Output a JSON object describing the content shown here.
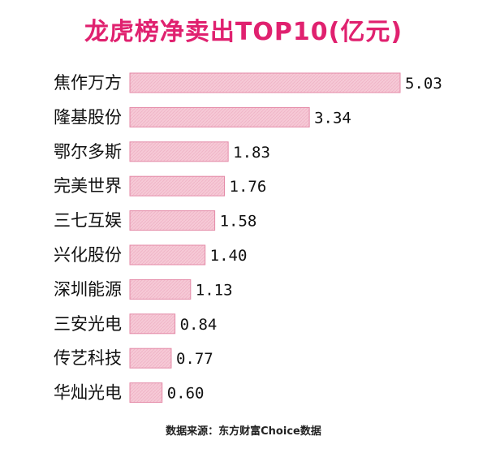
{
  "chart_data": {
    "type": "bar",
    "orientation": "horizontal",
    "title": "龙虎榜净卖出TOP10(亿元)",
    "source": "数据来源：东方财富Choice数据",
    "categories": [
      "焦作万方",
      "隆基股份",
      "鄂尔多斯",
      "完美世界",
      "三七互娱",
      "兴化股份",
      "深圳能源",
      "三安光电",
      "传艺科技",
      "华灿光电"
    ],
    "values": [
      5.03,
      3.34,
      1.83,
      1.76,
      1.58,
      1.4,
      1.13,
      0.84,
      0.77,
      0.6
    ],
    "value_labels": [
      "5.03",
      "3.34",
      "1.83",
      "1.76",
      "1.58",
      "1.40",
      "1.13",
      "0.84",
      "0.77",
      "0.60"
    ],
    "xlim": [
      0,
      5.03
    ],
    "grid": false,
    "legend": "none",
    "colors": {
      "title": "#e0216f",
      "bar_fill": "#f6c9d6",
      "bar_stroke": "#e48aa7",
      "text": "#111111"
    }
  }
}
